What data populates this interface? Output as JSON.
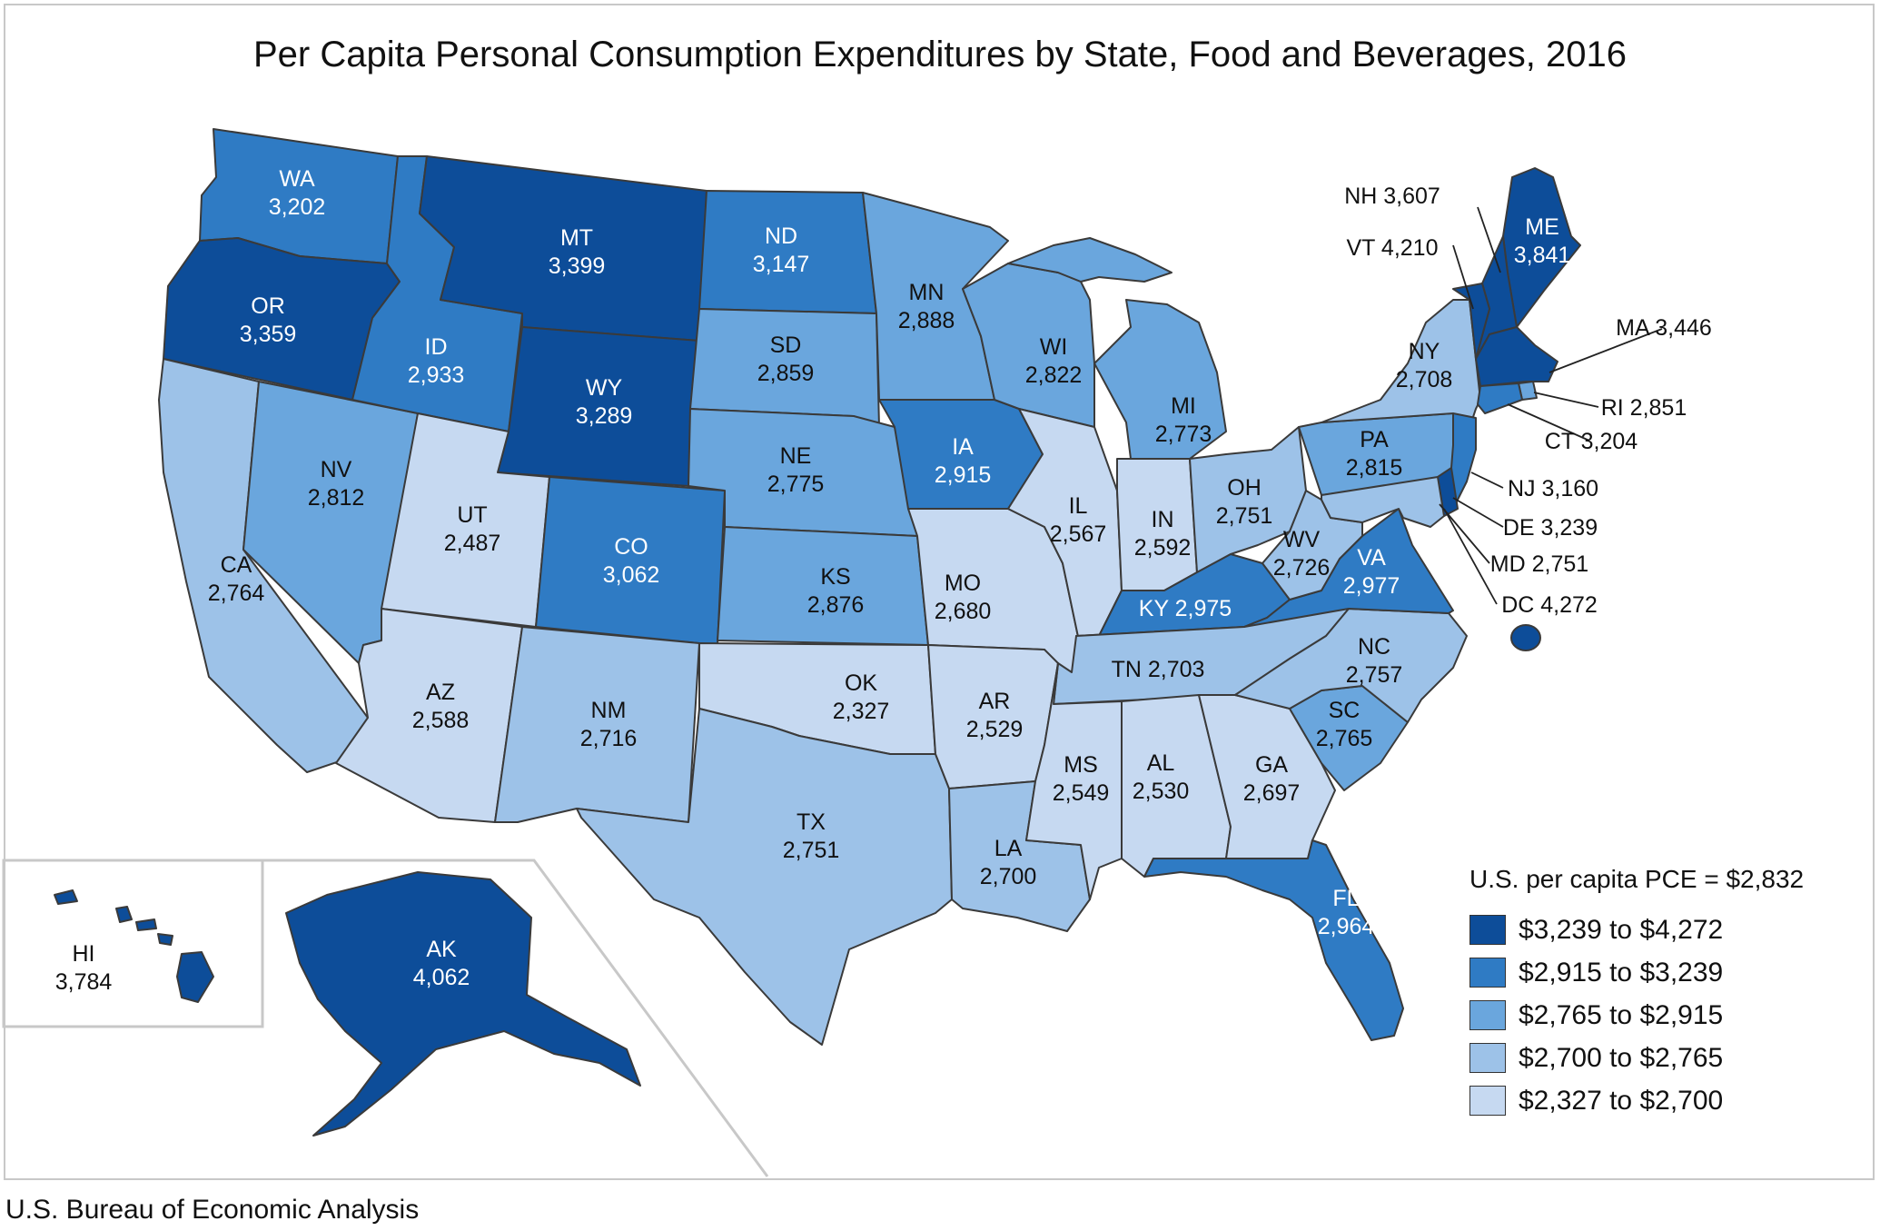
{
  "title": "Per Capita Personal Consumption Expenditures by State, Food and Beverages, 2016",
  "source": "U.S. Bureau of Economic Analysis",
  "palette": {
    "c1": "#0d4d99",
    "c2": "#2f7bc4",
    "c3": "#6aa6dd",
    "c4": "#9dc2e8",
    "c5": "#c6d9f1",
    "border": "#3a3a3a",
    "inset_line": "#c8c8c8"
  },
  "legend": {
    "title": "U.S. per capita PCE = $2,832",
    "items": [
      {
        "label": "$3,239 to $4,272",
        "class": "c1"
      },
      {
        "label": "$2,915 to $3,239",
        "class": "c2"
      },
      {
        "label": "$2,765 to $2,915",
        "class": "c3"
      },
      {
        "label": "$2,700 to $2,765",
        "class": "c4"
      },
      {
        "label": "$2,327 to $2,700",
        "class": "c5"
      }
    ]
  },
  "states": [
    {
      "abbr": "WA",
      "value": "3,202",
      "class": "c2"
    },
    {
      "abbr": "OR",
      "value": "3,359",
      "class": "c1"
    },
    {
      "abbr": "CA",
      "value": "2,764",
      "class": "c4"
    },
    {
      "abbr": "NV",
      "value": "2,812",
      "class": "c3"
    },
    {
      "abbr": "ID",
      "value": "2,933",
      "class": "c2"
    },
    {
      "abbr": "MT",
      "value": "3,399",
      "class": "c1"
    },
    {
      "abbr": "WY",
      "value": "3,289",
      "class": "c1"
    },
    {
      "abbr": "UT",
      "value": "2,487",
      "class": "c5"
    },
    {
      "abbr": "AZ",
      "value": "2,588",
      "class": "c5"
    },
    {
      "abbr": "CO",
      "value": "3,062",
      "class": "c2"
    },
    {
      "abbr": "NM",
      "value": "2,716",
      "class": "c4"
    },
    {
      "abbr": "ND",
      "value": "3,147",
      "class": "c2"
    },
    {
      "abbr": "SD",
      "value": "2,859",
      "class": "c3"
    },
    {
      "abbr": "NE",
      "value": "2,775",
      "class": "c3"
    },
    {
      "abbr": "KS",
      "value": "2,876",
      "class": "c3"
    },
    {
      "abbr": "OK",
      "value": "2,327",
      "class": "c5"
    },
    {
      "abbr": "TX",
      "value": "2,751",
      "class": "c4"
    },
    {
      "abbr": "MN",
      "value": "2,888",
      "class": "c3"
    },
    {
      "abbr": "IA",
      "value": "2,915",
      "class": "c2"
    },
    {
      "abbr": "MO",
      "value": "2,680",
      "class": "c5"
    },
    {
      "abbr": "AR",
      "value": "2,529",
      "class": "c5"
    },
    {
      "abbr": "LA",
      "value": "2,700",
      "class": "c4"
    },
    {
      "abbr": "WI",
      "value": "2,822",
      "class": "c3"
    },
    {
      "abbr": "IL",
      "value": "2,567",
      "class": "c5"
    },
    {
      "abbr": "MI",
      "value": "2,773",
      "class": "c3"
    },
    {
      "abbr": "IN",
      "value": "2,592",
      "class": "c5"
    },
    {
      "abbr": "OH",
      "value": "2,751",
      "class": "c4"
    },
    {
      "abbr": "KY",
      "value": "2,975",
      "class": "c2"
    },
    {
      "abbr": "TN",
      "value": "2,703",
      "class": "c4"
    },
    {
      "abbr": "MS",
      "value": "2,549",
      "class": "c5"
    },
    {
      "abbr": "AL",
      "value": "2,530",
      "class": "c5"
    },
    {
      "abbr": "GA",
      "value": "2,697",
      "class": "c5"
    },
    {
      "abbr": "FL",
      "value": "2,964",
      "class": "c2"
    },
    {
      "abbr": "SC",
      "value": "2,765",
      "class": "c3"
    },
    {
      "abbr": "NC",
      "value": "2,757",
      "class": "c4"
    },
    {
      "abbr": "VA",
      "value": "2,977",
      "class": "c2"
    },
    {
      "abbr": "WV",
      "value": "2,726",
      "class": "c4"
    },
    {
      "abbr": "PA",
      "value": "2,815",
      "class": "c3"
    },
    {
      "abbr": "NY",
      "value": "2,708",
      "class": "c4"
    },
    {
      "abbr": "ME",
      "value": "3,841",
      "class": "c1"
    },
    {
      "abbr": "NH",
      "value": "3,607",
      "class": "c1"
    },
    {
      "abbr": "VT",
      "value": "4,210",
      "class": "c1"
    },
    {
      "abbr": "MA",
      "value": "3,446",
      "class": "c1"
    },
    {
      "abbr": "RI",
      "value": "2,851",
      "class": "c3"
    },
    {
      "abbr": "CT",
      "value": "3,204",
      "class": "c2"
    },
    {
      "abbr": "NJ",
      "value": "3,160",
      "class": "c2"
    },
    {
      "abbr": "DE",
      "value": "3,239",
      "class": "c1"
    },
    {
      "abbr": "MD",
      "value": "2,751",
      "class": "c4"
    },
    {
      "abbr": "DC",
      "value": "4,272",
      "class": "c1"
    },
    {
      "abbr": "AK",
      "value": "4,062",
      "class": "c1"
    },
    {
      "abbr": "HI",
      "value": "3,784",
      "class": "c1"
    }
  ]
}
